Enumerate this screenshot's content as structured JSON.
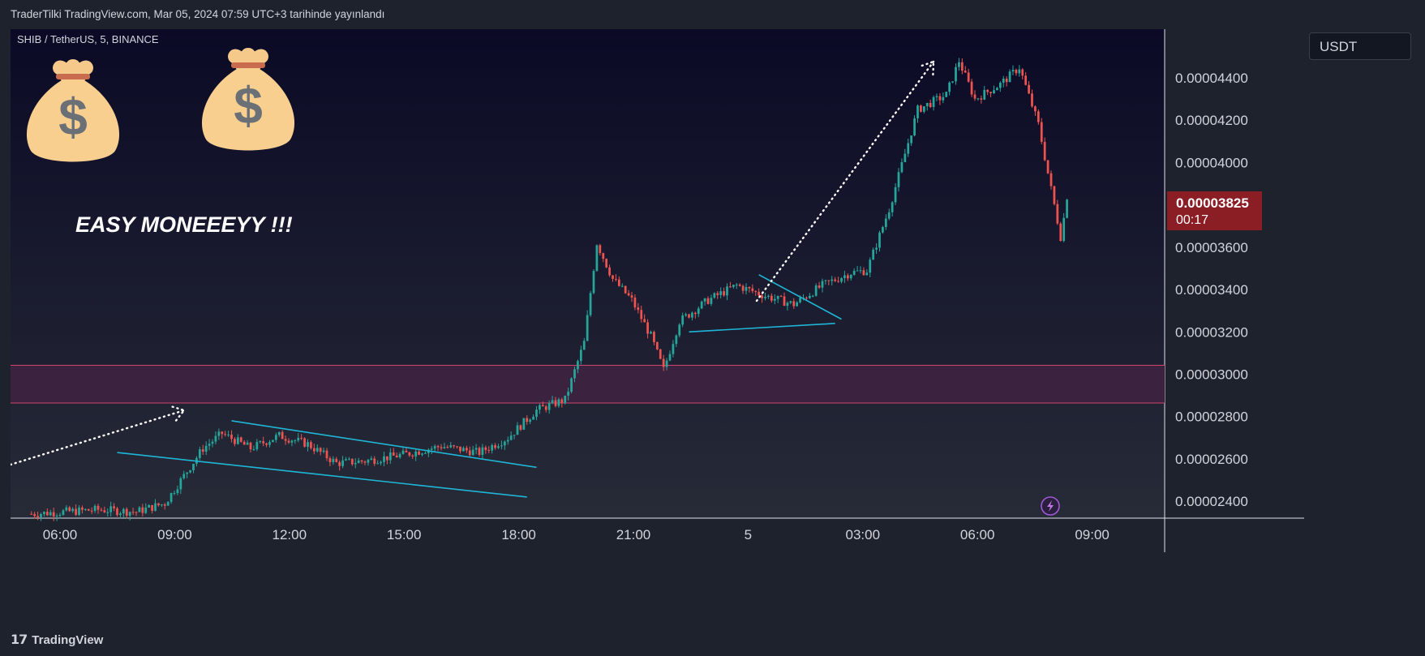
{
  "header": {
    "publish_text": "TraderTilki TradingView.com, Mar 05, 2024 07:59 UTC+3 tarihinde yayınlandı"
  },
  "symbol_label": "SHIB / TetherUS, 5, BINANCE",
  "currency": "USDT",
  "annotation": "EASY MONEEEYY !!!",
  "current_price": "0.00003825",
  "countdown": "00:17",
  "footer": {
    "brand": "TradingView"
  },
  "colors": {
    "background_top": "#0b0a26",
    "background_bottom": "#272b37",
    "up_candle": "#26a69a",
    "down_candle": "#ef5350",
    "trendline": "#1fb6d6",
    "zone_fill": "#3b2340",
    "zone_border": "#d0436e",
    "price_tag": "#8b1d24"
  },
  "icons": [
    "money-bag-icon",
    "money-bag-icon",
    "lightning-icon",
    "tradingview-logo-icon"
  ],
  "chart_data": {
    "type": "candlestick",
    "y_ticks": [
      "0.00004400",
      "0.00004200",
      "0.00004000",
      "0.00003600",
      "0.00003400",
      "0.00003200",
      "0.00003000",
      "0.00002800",
      "0.00002600",
      "0.00002400"
    ],
    "x_ticks": [
      "06:00",
      "09:00",
      "12:00",
      "15:00",
      "18:00",
      "21:00",
      "5",
      "03:00",
      "06:00",
      "09:00"
    ],
    "ylim": [
      2.32e-05,
      4.63e-05
    ],
    "last_price": 3.825e-05,
    "zone": [
      2.864e-05,
      3.042e-05
    ],
    "close_path": [
      [
        "05:15",
        2.34e-05
      ],
      [
        "07:00",
        2.36e-05
      ],
      [
        "08:00",
        2.35e-05
      ],
      [
        "08:45",
        2.39e-05
      ],
      [
        "09:15",
        2.52e-05
      ],
      [
        "09:45",
        2.65e-05
      ],
      [
        "10:15",
        2.72e-05
      ],
      [
        "11:00",
        2.65e-05
      ],
      [
        "11:45",
        2.71e-05
      ],
      [
        "12:30",
        2.67e-05
      ],
      [
        "13:15",
        2.58e-05
      ],
      [
        "14:00",
        2.59e-05
      ],
      [
        "15:00",
        2.62e-05
      ],
      [
        "16:00",
        2.66e-05
      ],
      [
        "17:00",
        2.63e-05
      ],
      [
        "17:45",
        2.7e-05
      ],
      [
        "18:30",
        2.83e-05
      ],
      [
        "19:15",
        2.88e-05
      ],
      [
        "19:45",
        3.15e-05
      ],
      [
        "20:05",
        3.62e-05
      ],
      [
        "20:30",
        3.45e-05
      ],
      [
        "21:00",
        3.35e-05
      ],
      [
        "21:30",
        3.18e-05
      ],
      [
        "21:50",
        3.02e-05
      ],
      [
        "22:15",
        3.25e-05
      ],
      [
        "23:00",
        3.35e-05
      ],
      [
        "23:45",
        3.42e-05
      ],
      [
        "00:30",
        3.37e-05
      ],
      [
        "01:15",
        3.33e-05
      ],
      [
        "02:00",
        3.42e-05
      ],
      [
        "02:45",
        3.48e-05
      ],
      [
        "03:10",
        3.49e-05
      ],
      [
        "03:45",
        3.78e-05
      ],
      [
        "04:30",
        4.25e-05
      ],
      [
        "05:15",
        4.32e-05
      ],
      [
        "05:35",
        4.48e-05
      ],
      [
        "06:00",
        4.3e-05
      ],
      [
        "06:40",
        4.37e-05
      ],
      [
        "07:10",
        4.45e-05
      ],
      [
        "07:40",
        4.18e-05
      ],
      [
        "07:55",
        3.95e-05
      ],
      [
        "08:15",
        3.65e-05
      ],
      [
        "08:25",
        3.825e-05
      ]
    ],
    "trendlines": [
      {
        "from": [
          "07:30",
          2.63e-05
        ],
        "to": [
          "18:15",
          2.42e-05
        ]
      },
      {
        "from": [
          "10:30",
          2.78e-05
        ],
        "to": [
          "18:30",
          2.56e-05
        ]
      },
      {
        "from": [
          "22:30",
          3.2e-05
        ],
        "to": [
          "02:20",
          3.24e-05
        ]
      },
      {
        "from": [
          "00:20",
          3.47e-05
        ],
        "to": [
          "02:30",
          3.26e-05
        ]
      }
    ]
  }
}
